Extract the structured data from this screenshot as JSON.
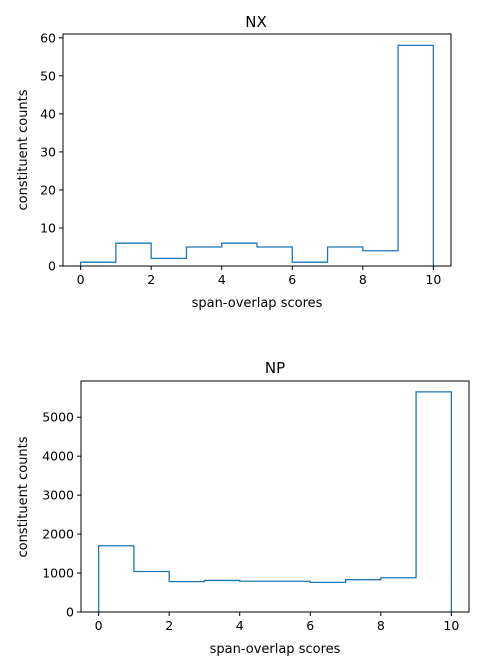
{
  "chart_data": [
    {
      "type": "bar",
      "title": "NX",
      "xlabel": "span-overlap scores",
      "ylabel": "constituent counts",
      "bin_edges": [
        0,
        1,
        2,
        3,
        4,
        5,
        6,
        7,
        8,
        9,
        10
      ],
      "values": [
        1,
        6,
        2,
        5,
        6,
        5,
        1,
        5,
        4,
        58
      ],
      "xlim": [
        -0.5,
        10.5
      ],
      "ylim": [
        0,
        61
      ],
      "xticks": [
        0,
        2,
        4,
        6,
        8,
        10
      ],
      "yticks": [
        0,
        10,
        20,
        30,
        40,
        50,
        60
      ],
      "grid": false,
      "color": "#1f77b4"
    },
    {
      "type": "bar",
      "title": "NP",
      "xlabel": "span-overlap scores",
      "ylabel": "constituent counts",
      "bin_edges": [
        0,
        1,
        2,
        3,
        4,
        5,
        6,
        7,
        8,
        9,
        10
      ],
      "values": [
        1700,
        1040,
        780,
        810,
        790,
        790,
        760,
        830,
        880,
        5650
      ],
      "xlim": [
        -0.5,
        10.5
      ],
      "ylim": [
        0,
        5930
      ],
      "xticks": [
        0,
        2,
        4,
        6,
        8,
        10
      ],
      "yticks": [
        0,
        1000,
        2000,
        3000,
        4000,
        5000
      ],
      "grid": false,
      "color": "#1f77b4"
    }
  ]
}
